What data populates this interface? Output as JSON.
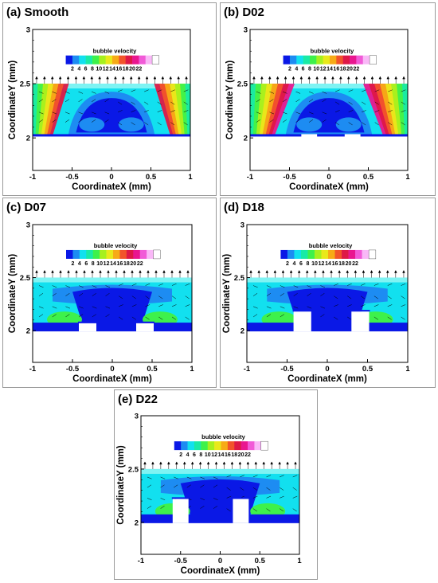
{
  "legend": {
    "title": "bubble velocity",
    "levels": [
      "2",
      "4",
      "6",
      "8",
      "10",
      "12",
      "14",
      "16",
      "18",
      "20",
      "22"
    ],
    "colors": [
      "#0a18e6",
      "#1d8cf2",
      "#12e0ef",
      "#19eaa6",
      "#3ef14b",
      "#a6f01e",
      "#e9e91a",
      "#f7ab16",
      "#f2542a",
      "#de1846",
      "#e9168f",
      "#f15ad7",
      "#f9b8f7",
      "#ffffff"
    ]
  },
  "chart_data": [
    {
      "type": "heatmap",
      "title": "(a) Smooth",
      "xlabel": "CoordinateX (mm)",
      "ylabel": "CoordinateY (mm)",
      "xlim": [
        -1,
        1
      ],
      "ylim": [
        1.7,
        3
      ],
      "xticks": [
        "-1",
        "-0.5",
        "0",
        "0.5",
        "1"
      ],
      "yticks": [
        "2",
        "2.5",
        "3"
      ],
      "wall": "flat",
      "wall_top": 2.02,
      "liquid_top": 2.5
    },
    {
      "type": "heatmap",
      "title": "(b) D02",
      "xlabel": "CoordinateX (mm)",
      "ylabel": "CoordinateY (mm)",
      "xlim": [
        -1,
        1
      ],
      "ylim": [
        1.7,
        3
      ],
      "xticks": [
        "-1",
        "-0.5",
        "0",
        "0.5",
        "1"
      ],
      "yticks": [
        "2",
        "2.5",
        "3"
      ],
      "wall": "grooved",
      "wall_top": 2.02,
      "groove_depth": 0.02,
      "liquid_top": 2.5
    },
    {
      "type": "heatmap",
      "title": "(c) D07",
      "xlabel": "CoordinateX (mm)",
      "ylabel": "CoordinateY (mm)",
      "xlim": [
        -1,
        1
      ],
      "ylim": [
        1.7,
        3
      ],
      "xticks": [
        "-1",
        "-0.5",
        "0",
        "0.5",
        "1"
      ],
      "yticks": [
        "2",
        "2.5",
        "3"
      ],
      "wall": "pillars",
      "pillar_top": 2.07,
      "liquid_top": 2.5
    },
    {
      "type": "heatmap",
      "title": "(d) D18",
      "xlabel": "CoordinateX (mm)",
      "ylabel": "CoordinateY (mm)",
      "xlim": [
        -1,
        1
      ],
      "ylim": [
        1.7,
        3
      ],
      "xticks": [
        "-1",
        "-0.5",
        "0",
        "0.5",
        "1"
      ],
      "yticks": [
        "2",
        "2.5",
        "3"
      ],
      "wall": "pillars",
      "pillar_top": 2.18,
      "liquid_top": 2.5
    },
    {
      "type": "heatmap",
      "title": "(e) D22",
      "xlabel": "CoordinateX (mm)",
      "ylabel": "CoordinateY (mm)",
      "xlim": [
        -1,
        1
      ],
      "ylim": [
        1.7,
        3
      ],
      "xticks": [
        "-1",
        "-0.5",
        "0",
        "0.5",
        "1"
      ],
      "yticks": [
        "2",
        "2.5",
        "3"
      ],
      "wall": "pillars",
      "pillar_top": 2.22,
      "liquid_top": 2.5
    }
  ]
}
